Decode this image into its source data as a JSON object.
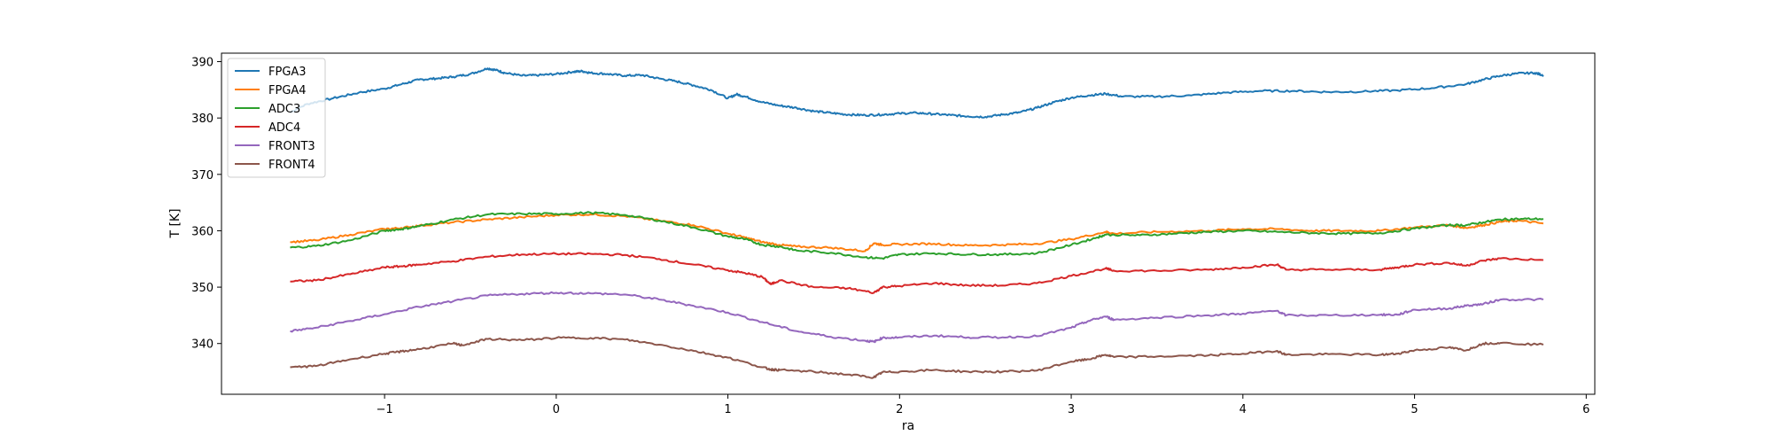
{
  "chart_data": {
    "type": "line",
    "xlabel": "ra",
    "ylabel": "T [K]",
    "xlim": [
      -1.95,
      6.05
    ],
    "ylim": [
      331,
      391.5
    ],
    "xticks": [
      -1,
      0,
      1,
      2,
      3,
      4,
      5,
      6
    ],
    "yticks": [
      340,
      350,
      360,
      370,
      380,
      390
    ],
    "grid": false,
    "legend_position": "top-left",
    "series": [
      {
        "name": "FPGA3",
        "color": "#1f77b4",
        "x": [
          -1.55,
          -1.45,
          -1.3,
          -1.15,
          -1.0,
          -0.9,
          -0.8,
          -0.7,
          -0.6,
          -0.5,
          -0.4,
          -0.35,
          -0.3,
          -0.2,
          -0.1,
          0.0,
          0.1,
          0.15,
          0.2,
          0.3,
          0.4,
          0.5,
          0.6,
          0.7,
          0.8,
          0.9,
          1.0,
          1.05,
          1.1,
          1.2,
          1.3,
          1.4,
          1.5,
          1.6,
          1.7,
          1.8,
          1.9,
          2.0,
          2.1,
          2.2,
          2.3,
          2.4,
          2.5,
          2.6,
          2.7,
          2.8,
          2.9,
          3.0,
          3.1,
          3.2,
          3.3,
          3.5,
          3.7,
          3.9,
          4.1,
          4.3,
          4.5,
          4.7,
          4.9,
          5.1,
          5.3,
          5.4,
          5.5,
          5.6,
          5.7,
          5.75
        ],
        "y": [
          381.0,
          382.5,
          383.5,
          384.5,
          385.2,
          386.0,
          386.8,
          387.0,
          387.3,
          387.8,
          388.8,
          388.5,
          388.0,
          387.5,
          387.6,
          387.8,
          388.2,
          388.3,
          388.0,
          387.8,
          387.5,
          387.6,
          387.0,
          386.5,
          385.8,
          385.0,
          383.5,
          384.2,
          383.8,
          382.8,
          382.2,
          381.8,
          381.2,
          380.9,
          380.6,
          380.5,
          380.6,
          380.8,
          380.9,
          380.7,
          380.5,
          380.3,
          380.2,
          380.6,
          381.0,
          381.8,
          382.8,
          383.6,
          384.0,
          384.3,
          383.8,
          383.8,
          384.0,
          384.5,
          384.8,
          384.8,
          384.6,
          384.7,
          384.9,
          385.3,
          386.0,
          386.8,
          387.5,
          387.9,
          388.0,
          387.6
        ]
      },
      {
        "name": "FPGA4",
        "color": "#ff7f0e",
        "x": [
          -1.55,
          -1.4,
          -1.2,
          -1.0,
          -0.9,
          -0.8,
          -0.6,
          -0.4,
          -0.2,
          0.0,
          0.2,
          0.4,
          0.6,
          0.8,
          1.0,
          1.1,
          1.2,
          1.3,
          1.4,
          1.6,
          1.8,
          1.85,
          1.9,
          2.0,
          2.2,
          2.4,
          2.6,
          2.8,
          3.0,
          3.2,
          3.25,
          3.5,
          3.8,
          4.0,
          4.2,
          4.4,
          4.6,
          4.8,
          5.0,
          5.2,
          5.3,
          5.4,
          5.5,
          5.6,
          5.75
        ],
        "y": [
          358.0,
          358.3,
          359.3,
          360.3,
          360.5,
          360.9,
          361.5,
          362.0,
          362.4,
          362.8,
          362.9,
          362.6,
          361.8,
          361.0,
          359.5,
          358.8,
          358.0,
          357.5,
          357.2,
          357.0,
          356.4,
          357.8,
          357.5,
          357.6,
          357.7,
          357.4,
          357.5,
          357.7,
          358.5,
          359.8,
          359.5,
          359.8,
          360.0,
          360.3,
          360.3,
          360.0,
          360.0,
          360.0,
          360.6,
          361.0,
          360.5,
          361.0,
          361.6,
          361.8,
          361.3
        ]
      },
      {
        "name": "ADC3",
        "color": "#2ca02c",
        "x": [
          -1.55,
          -1.4,
          -1.2,
          -1.0,
          -0.9,
          -0.8,
          -0.6,
          -0.4,
          -0.2,
          0.0,
          0.2,
          0.4,
          0.6,
          0.8,
          1.0,
          1.1,
          1.2,
          1.3,
          1.4,
          1.6,
          1.8,
          1.9,
          2.0,
          2.2,
          2.4,
          2.6,
          2.8,
          3.0,
          3.15,
          3.2,
          3.4,
          3.6,
          3.8,
          4.0,
          4.2,
          4.4,
          4.6,
          4.8,
          5.0,
          5.2,
          5.3,
          5.4,
          5.5,
          5.6,
          5.75
        ],
        "y": [
          357.0,
          357.3,
          358.3,
          360.0,
          360.3,
          360.8,
          362.0,
          362.9,
          363.0,
          363.0,
          363.2,
          362.8,
          361.8,
          360.6,
          359.0,
          358.5,
          357.5,
          357.2,
          356.5,
          356.1,
          355.3,
          355.1,
          355.8,
          356.0,
          355.8,
          355.8,
          356.0,
          357.5,
          358.8,
          359.3,
          359.2,
          359.5,
          359.8,
          360.0,
          359.8,
          359.6,
          359.5,
          359.6,
          360.4,
          361.0,
          361.0,
          361.5,
          362.0,
          362.1,
          362.1
        ]
      },
      {
        "name": "ADC4",
        "color": "#d62728",
        "x": [
          -1.55,
          -1.4,
          -1.2,
          -1.0,
          -0.9,
          -0.8,
          -0.6,
          -0.4,
          -0.2,
          0.0,
          0.2,
          0.4,
          0.6,
          0.8,
          1.0,
          1.1,
          1.2,
          1.25,
          1.3,
          1.5,
          1.7,
          1.85,
          1.9,
          2.0,
          2.2,
          2.4,
          2.6,
          2.8,
          3.0,
          3.2,
          3.25,
          3.5,
          3.8,
          4.0,
          4.2,
          4.25,
          4.5,
          4.8,
          4.9,
          5.0,
          5.2,
          5.3,
          5.4,
          5.5,
          5.75
        ],
        "y": [
          351.0,
          351.2,
          352.3,
          353.5,
          353.7,
          354.0,
          354.6,
          355.4,
          355.8,
          355.9,
          355.9,
          355.7,
          355.0,
          354.0,
          353.0,
          352.5,
          351.8,
          350.5,
          351.2,
          350.0,
          349.8,
          349.0,
          350.0,
          350.2,
          350.7,
          350.3,
          350.3,
          350.7,
          352.0,
          353.3,
          352.9,
          352.9,
          353.1,
          353.5,
          354.0,
          353.1,
          353.1,
          353.1,
          353.5,
          354.0,
          354.3,
          353.8,
          354.7,
          355.1,
          354.8
        ]
      },
      {
        "name": "FRONT3",
        "color": "#9467bd",
        "x": [
          -1.55,
          -1.4,
          -1.2,
          -1.0,
          -0.8,
          -0.6,
          -0.4,
          -0.2,
          0.0,
          0.2,
          0.4,
          0.6,
          0.8,
          1.0,
          1.2,
          1.4,
          1.6,
          1.8,
          1.85,
          1.9,
          2.0,
          2.2,
          2.4,
          2.6,
          2.8,
          3.0,
          3.1,
          3.2,
          3.25,
          3.5,
          3.8,
          4.0,
          4.2,
          4.25,
          4.5,
          4.8,
          4.9,
          5.0,
          5.2,
          5.3,
          5.4,
          5.5,
          5.75
        ],
        "y": [
          342.2,
          342.8,
          344.0,
          345.2,
          346.5,
          347.5,
          348.5,
          348.8,
          349.0,
          348.9,
          348.7,
          347.8,
          346.7,
          345.5,
          343.8,
          342.2,
          341.2,
          340.5,
          340.3,
          341.0,
          341.1,
          341.4,
          341.1,
          341.1,
          341.3,
          342.8,
          344.0,
          344.8,
          344.2,
          344.6,
          345.0,
          345.3,
          345.8,
          345.0,
          345.0,
          345.1,
          345.1,
          346.0,
          346.2,
          346.7,
          347.0,
          347.8,
          347.8
        ]
      },
      {
        "name": "FRONT4",
        "color": "#8c564b",
        "x": [
          -1.55,
          -1.4,
          -1.2,
          -1.0,
          -0.9,
          -0.8,
          -0.6,
          -0.55,
          -0.4,
          -0.2,
          0.0,
          0.2,
          0.4,
          0.6,
          0.8,
          1.0,
          1.2,
          1.25,
          1.3,
          1.5,
          1.7,
          1.85,
          1.9,
          2.0,
          2.2,
          2.4,
          2.6,
          2.8,
          3.0,
          3.1,
          3.2,
          3.25,
          3.5,
          3.8,
          4.0,
          4.2,
          4.25,
          4.5,
          4.8,
          4.9,
          5.0,
          5.2,
          5.3,
          5.4,
          5.5,
          5.75
        ],
        "y": [
          335.8,
          336.0,
          337.2,
          338.2,
          338.6,
          339.0,
          340.0,
          339.7,
          340.8,
          340.6,
          341.0,
          341.0,
          340.7,
          339.8,
          338.7,
          337.5,
          335.8,
          335.4,
          335.3,
          335.0,
          334.5,
          334.0,
          334.9,
          335.0,
          335.3,
          335.0,
          335.0,
          335.2,
          336.8,
          337.2,
          338.0,
          337.6,
          337.7,
          337.9,
          338.2,
          338.7,
          338.0,
          338.1,
          338.0,
          338.2,
          338.8,
          339.3,
          338.8,
          340.0,
          340.1,
          339.8
        ]
      }
    ]
  }
}
